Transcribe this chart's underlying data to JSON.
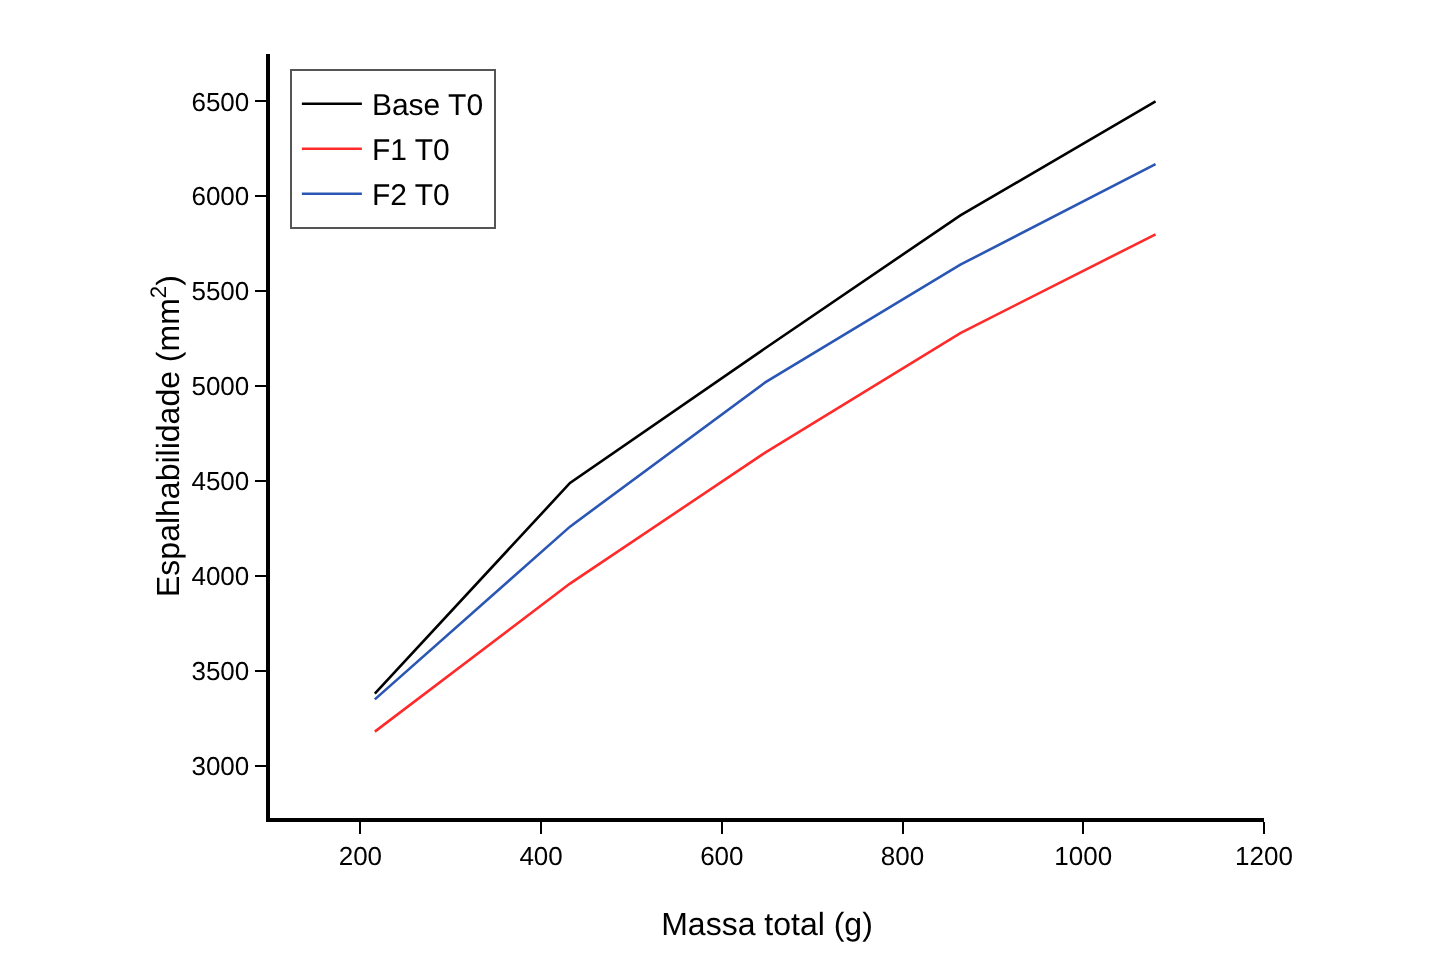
{
  "chart_data": {
    "type": "line",
    "xlabel": "Massa total (g)",
    "ylabel": "Espalhabilidade (mm$^{2}$)",
    "x": [
      216,
      432,
      648,
      864,
      1080
    ],
    "series": [
      {
        "name": "Base T0",
        "color": "#000000",
        "values": [
          3380,
          4490,
          5200,
          5900,
          6500
        ]
      },
      {
        "name": "F1 T0",
        "color": "#ff2a2a",
        "values": [
          3180,
          3960,
          4650,
          5280,
          5800
        ]
      },
      {
        "name": "F2 T0",
        "color": "#2a56b4",
        "values": [
          3350,
          4260,
          5020,
          5640,
          6170
        ]
      }
    ],
    "xlim": [
      100,
      1200
    ],
    "xticks": [
      200,
      400,
      600,
      800,
      1000,
      1200
    ],
    "ylim": [
      2725,
      6750
    ],
    "yticks": [
      3000,
      3500,
      4000,
      4500,
      5000,
      5500,
      6000,
      6500
    ],
    "grid": false,
    "legend": "top left",
    "marker": "none",
    "line_style": "solid"
  }
}
